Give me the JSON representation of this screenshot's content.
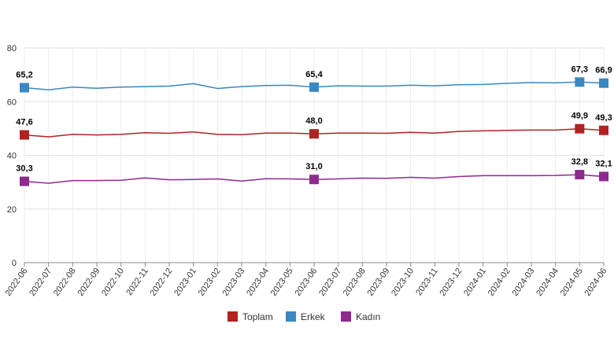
{
  "chart_data": {
    "type": "line",
    "x": [
      "2022-06",
      "2022-07",
      "2022-08",
      "2022-09",
      "2022-10",
      "2022-11",
      "2022-12",
      "2023-01",
      "2023-02",
      "2023-03",
      "2023-04",
      "2023-05",
      "2023-06",
      "2023-07",
      "2023-08",
      "2023-09",
      "2023-10",
      "2023-11",
      "2023-12",
      "2024-01",
      "2024-02",
      "2024-03",
      "2024-04",
      "2024-05",
      "2024-06"
    ],
    "ylim": [
      0,
      80
    ],
    "yticks": [
      0,
      20,
      40,
      60,
      80
    ],
    "grid": "horizontal",
    "legend_position": "bottom",
    "series": [
      {
        "name": "Toplam",
        "color": "#b22222",
        "values": [
          47.6,
          46.9,
          47.8,
          47.6,
          47.8,
          48.4,
          48.2,
          48.7,
          47.8,
          47.7,
          48.3,
          48.3,
          48.0,
          48.3,
          48.3,
          48.2,
          48.6,
          48.3,
          48.9,
          49.1,
          49.3,
          49.4,
          49.4,
          49.9,
          49.3
        ],
        "labeled": {
          "2022-06": "47,6",
          "2023-06": "48,0",
          "2024-05": "49,9",
          "2024-06": "49,3"
        }
      },
      {
        "name": "Erkek",
        "color": "#3a87c1",
        "values": [
          65.2,
          64.4,
          65.4,
          65.0,
          65.4,
          65.6,
          65.8,
          66.7,
          64.9,
          65.6,
          66.0,
          66.1,
          65.4,
          65.9,
          65.8,
          65.8,
          66.1,
          65.9,
          66.3,
          66.4,
          66.8,
          67.1,
          67.0,
          67.3,
          66.9
        ],
        "labeled": {
          "2022-06": "65,2",
          "2023-06": "65,4",
          "2024-05": "67,3",
          "2024-06": "66,9"
        }
      },
      {
        "name": "Kadın",
        "color": "#8e2a8e",
        "values": [
          30.3,
          29.6,
          30.6,
          30.6,
          30.7,
          31.6,
          30.9,
          31.0,
          31.2,
          30.4,
          31.3,
          31.2,
          31.0,
          31.2,
          31.5,
          31.4,
          31.8,
          31.5,
          32.1,
          32.4,
          32.4,
          32.4,
          32.5,
          32.8,
          32.1
        ],
        "labeled": {
          "2022-06": "30,3",
          "2023-06": "31,0",
          "2024-05": "32,8",
          "2024-06": "32,1"
        }
      }
    ]
  }
}
